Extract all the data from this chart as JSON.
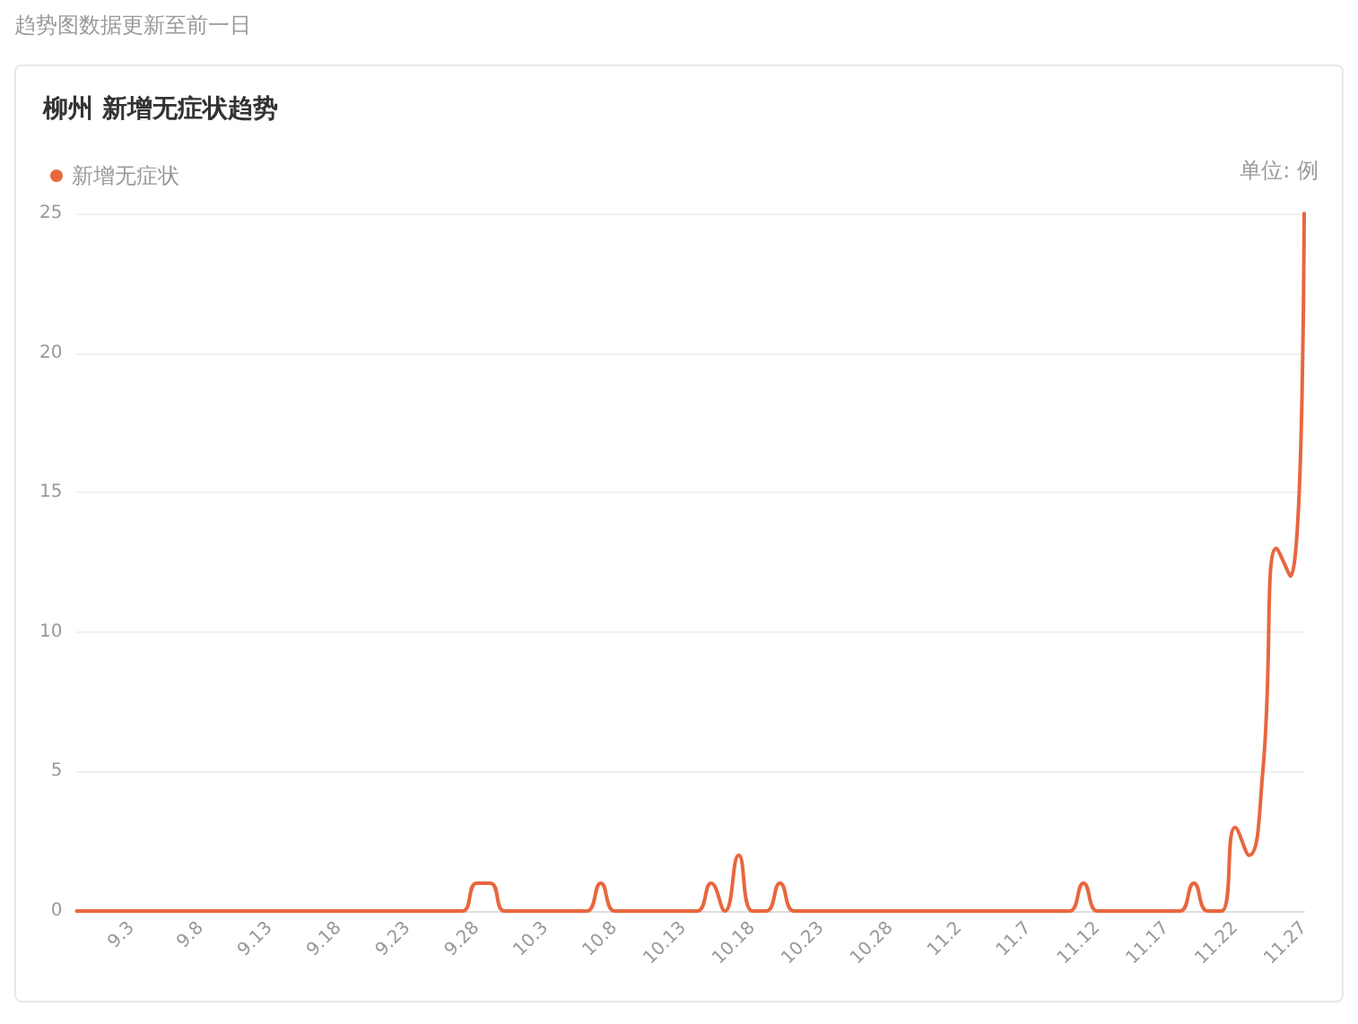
{
  "chart_data": {
    "type": "line",
    "title": "柳州 新增无症状趋势",
    "annotations": [
      "趋势图数据更新至前一日"
    ],
    "ylabel": "单位: 例",
    "categories": [
      null,
      null,
      null,
      null,
      "9.3",
      null,
      null,
      null,
      null,
      "9.8",
      null,
      null,
      null,
      null,
      "9.13",
      null,
      null,
      null,
      null,
      "9.18",
      null,
      null,
      null,
      null,
      "9.23",
      null,
      null,
      null,
      null,
      "9.28",
      null,
      null,
      null,
      null,
      "10.3",
      null,
      null,
      null,
      null,
      "10.8",
      null,
      null,
      null,
      null,
      "10.13",
      null,
      null,
      null,
      null,
      "10.18",
      null,
      null,
      null,
      null,
      "10.23",
      null,
      null,
      null,
      null,
      "10.28",
      null,
      null,
      null,
      null,
      "11.2",
      null,
      null,
      null,
      null,
      "11.7",
      null,
      null,
      null,
      null,
      "11.12",
      null,
      null,
      null,
      null,
      "11.17",
      null,
      null,
      null,
      null,
      "11.22",
      null,
      null,
      null,
      null,
      "11.27"
    ],
    "series": [
      {
        "name": "新增无症状",
        "color": "#e8673f",
        "values": [
          0,
          0,
          0,
          0,
          0,
          0,
          0,
          0,
          0,
          0,
          0,
          0,
          0,
          0,
          0,
          0,
          0,
          0,
          0,
          0,
          0,
          0,
          0,
          0,
          0,
          0,
          0,
          0,
          0,
          1,
          1,
          0,
          0,
          0,
          0,
          0,
          0,
          0,
          1,
          0,
          0,
          0,
          0,
          0,
          0,
          0,
          1,
          0,
          2,
          0,
          0,
          1,
          0,
          0,
          0,
          0,
          0,
          0,
          0,
          0,
          0,
          0,
          0,
          0,
          0,
          0,
          0,
          0,
          0,
          0,
          0,
          0,
          0,
          1,
          0,
          0,
          0,
          0,
          0,
          0,
          0,
          1,
          0,
          0,
          3,
          2,
          5,
          13,
          12,
          25
        ]
      }
    ],
    "ylim": [
      0,
      25
    ],
    "yticks": [
      0,
      5,
      10,
      15,
      20,
      25
    ],
    "grid": "y",
    "legend": "top left",
    "marker": "none",
    "line_style": "solid"
  }
}
